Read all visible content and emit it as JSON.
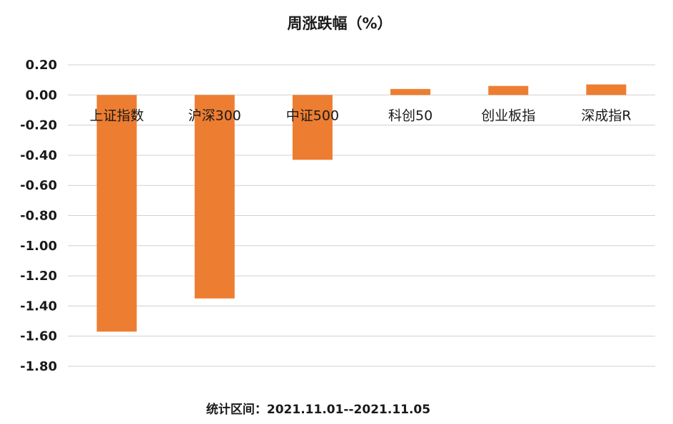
{
  "chart_data": {
    "type": "bar",
    "title": "周涨跌幅（%）",
    "categories": [
      "上证指数",
      "沪深300",
      "中证500",
      "科创50",
      "创业板指",
      "深成指R"
    ],
    "series": [
      {
        "values": [
          -1.57,
          -1.35,
          -0.43,
          0.04,
          0.06,
          0.07
        ]
      }
    ],
    "ylim": [
      -1.8,
      0.2
    ],
    "yticks": [
      "0.20",
      "0.00",
      "-0.20",
      "-0.40",
      "-0.60",
      "-0.80",
      "-1.00",
      "-1.20",
      "-1.40",
      "-1.60",
      "-1.80"
    ],
    "xlabel": "",
    "ylabel": "",
    "grid": true,
    "bar_color": "#ED7D31"
  },
  "footer": "统计区间：2021.11.01--2021.11.05"
}
